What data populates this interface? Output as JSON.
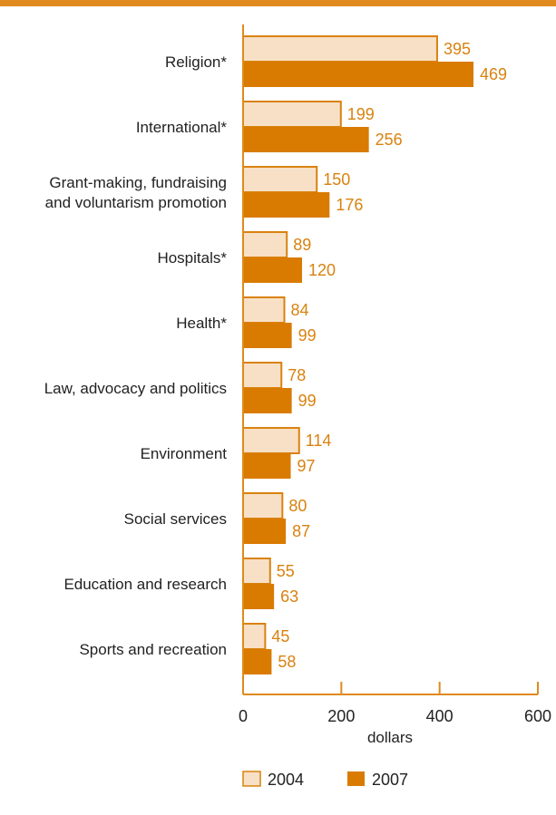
{
  "chart_data": {
    "type": "bar",
    "orientation": "horizontal",
    "categories": [
      [
        "Religion*"
      ],
      [
        "International*"
      ],
      [
        "Grant-making, fundraising",
        "and voluntarism promotion"
      ],
      [
        "Hospitals*"
      ],
      [
        "Health*"
      ],
      [
        "Law, advocacy and politics"
      ],
      [
        "Environment"
      ],
      [
        "Social services"
      ],
      [
        "Education and research"
      ],
      [
        "Sports and recreation"
      ]
    ],
    "series": [
      {
        "name": "2004",
        "values": [
          395,
          199,
          150,
          89,
          84,
          78,
          114,
          80,
          55,
          45
        ],
        "color": "#f7e0c6",
        "stroke": "#d9820f"
      },
      {
        "name": "2007",
        "values": [
          469,
          256,
          176,
          120,
          99,
          99,
          97,
          87,
          63,
          58
        ],
        "color": "#d97b00",
        "stroke": "#d97b00"
      }
    ],
    "xlabel": "dollars",
    "xlim": [
      0,
      600
    ],
    "xticks": [
      "0",
      "200",
      "400",
      "600"
    ],
    "label_color": "#d9820f",
    "accent_color": "#e08a1e",
    "grid": false,
    "legend": "bottom"
  }
}
